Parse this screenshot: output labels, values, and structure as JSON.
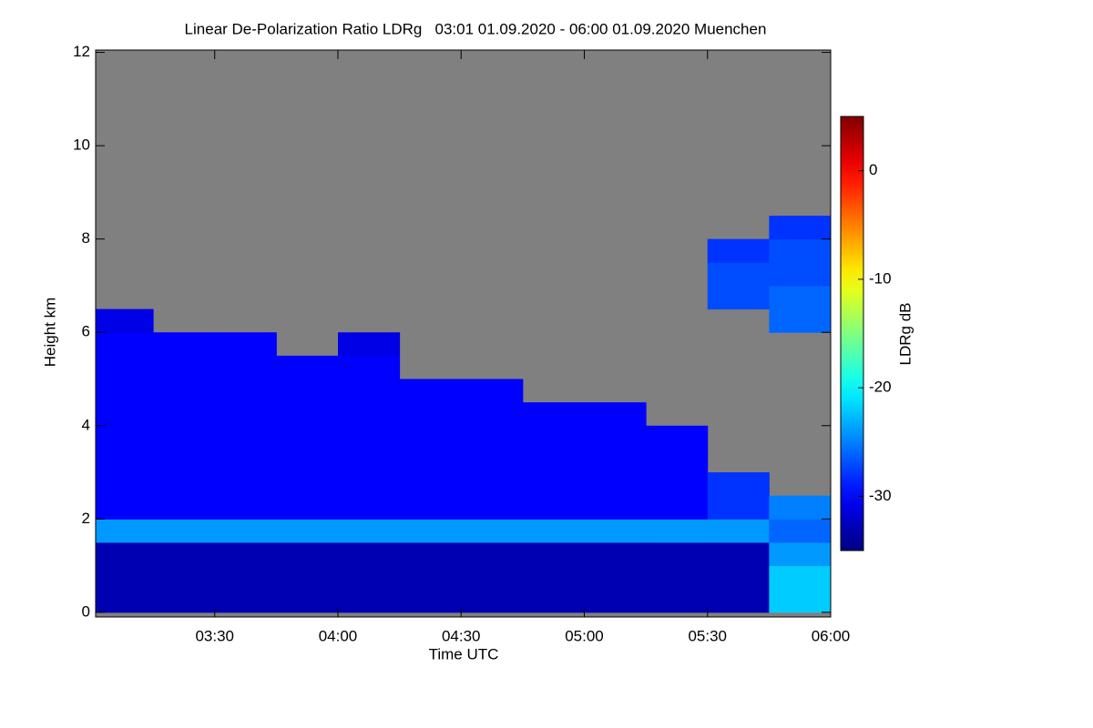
{
  "chart_data": {
    "type": "heatmap",
    "title": "Linear De-Polarization Ratio LDRg   03:01 01.09.2020 - 06:00 01.09.2020 Muenchen",
    "x_label": "Time UTC",
    "y_label": "Height km",
    "colorbar_label": "LDRg dB",
    "xlim": [
      181,
      360
    ],
    "xticks": [
      {
        "value": 210,
        "label": "03:30"
      },
      {
        "value": 240,
        "label": "04:00"
      },
      {
        "value": 270,
        "label": "04:30"
      },
      {
        "value": 300,
        "label": "05:00"
      },
      {
        "value": 330,
        "label": "05:30"
      },
      {
        "value": 360,
        "label": "06:00"
      }
    ],
    "ylim": [
      -0.1,
      12.05
    ],
    "yticks": [
      0,
      2,
      4,
      6,
      8,
      10,
      12
    ],
    "zlim": [
      -35,
      5
    ],
    "zticks": [
      -30,
      -20,
      -10,
      0
    ],
    "colormap": "jet",
    "no_data_color": "#808080",
    "xbins": [
      181,
      195,
      210,
      225,
      240,
      255,
      270,
      285,
      300,
      315,
      330,
      345,
      360
    ],
    "ybins": [
      0,
      0.5,
      1,
      1.5,
      2,
      2.5,
      3,
      3.5,
      4,
      4.5,
      5,
      5.5,
      6,
      6.5,
      7,
      7.5,
      8,
      8.5
    ],
    "z": [
      [
        -33,
        -33,
        -33,
        -33,
        -33,
        -33,
        -33,
        -33,
        -33,
        -33,
        -33,
        -22
      ],
      [
        -33,
        -33,
        -33,
        -33,
        -33,
        -33,
        -33,
        -33,
        -33,
        -33,
        -33,
        -22
      ],
      [
        -33,
        -33,
        -33,
        -33,
        -33,
        -33,
        -33,
        -33,
        -33,
        -33,
        -33,
        -24
      ],
      [
        -24,
        -24,
        -24,
        -24,
        -24,
        -24,
        -24,
        -24,
        -24,
        -24,
        -24,
        -26
      ],
      [
        -30,
        -30,
        -30,
        -30,
        -30,
        -30,
        -30,
        -30,
        -30,
        -30,
        -28,
        -25
      ],
      [
        -30,
        -30,
        -30,
        -30,
        -30,
        -30,
        -30,
        -30,
        -30,
        -30,
        -28,
        null
      ],
      [
        -30,
        -30,
        -30,
        -30,
        -30,
        -30,
        -30,
        -30,
        -30,
        -30,
        null,
        null
      ],
      [
        -30,
        -30,
        -30,
        -30,
        -30,
        -30,
        -30,
        -30,
        -30,
        -30,
        null,
        null
      ],
      [
        -30,
        -30,
        -30,
        -30,
        -30,
        -30,
        -30,
        -30,
        -30,
        null,
        null,
        null
      ],
      [
        -30,
        -30,
        -30,
        -30,
        -30,
        -30,
        -30,
        null,
        null,
        null,
        null,
        null
      ],
      [
        -30,
        -30,
        -30,
        -30,
        -30,
        null,
        null,
        null,
        null,
        null,
        null,
        null
      ],
      [
        -30,
        -30,
        -30,
        null,
        -31,
        null,
        null,
        null,
        null,
        null,
        null,
        null
      ],
      [
        -31,
        null,
        null,
        null,
        null,
        null,
        null,
        null,
        null,
        null,
        null,
        -26
      ],
      [
        null,
        null,
        null,
        null,
        null,
        null,
        null,
        null,
        null,
        null,
        -27,
        -26
      ],
      [
        null,
        null,
        null,
        null,
        null,
        null,
        null,
        null,
        null,
        null,
        -27,
        -27
      ],
      [
        null,
        null,
        null,
        null,
        null,
        null,
        null,
        null,
        null,
        null,
        -28,
        -27
      ],
      [
        null,
        null,
        null,
        null,
        null,
        null,
        null,
        null,
        null,
        null,
        null,
        -28
      ]
    ]
  }
}
